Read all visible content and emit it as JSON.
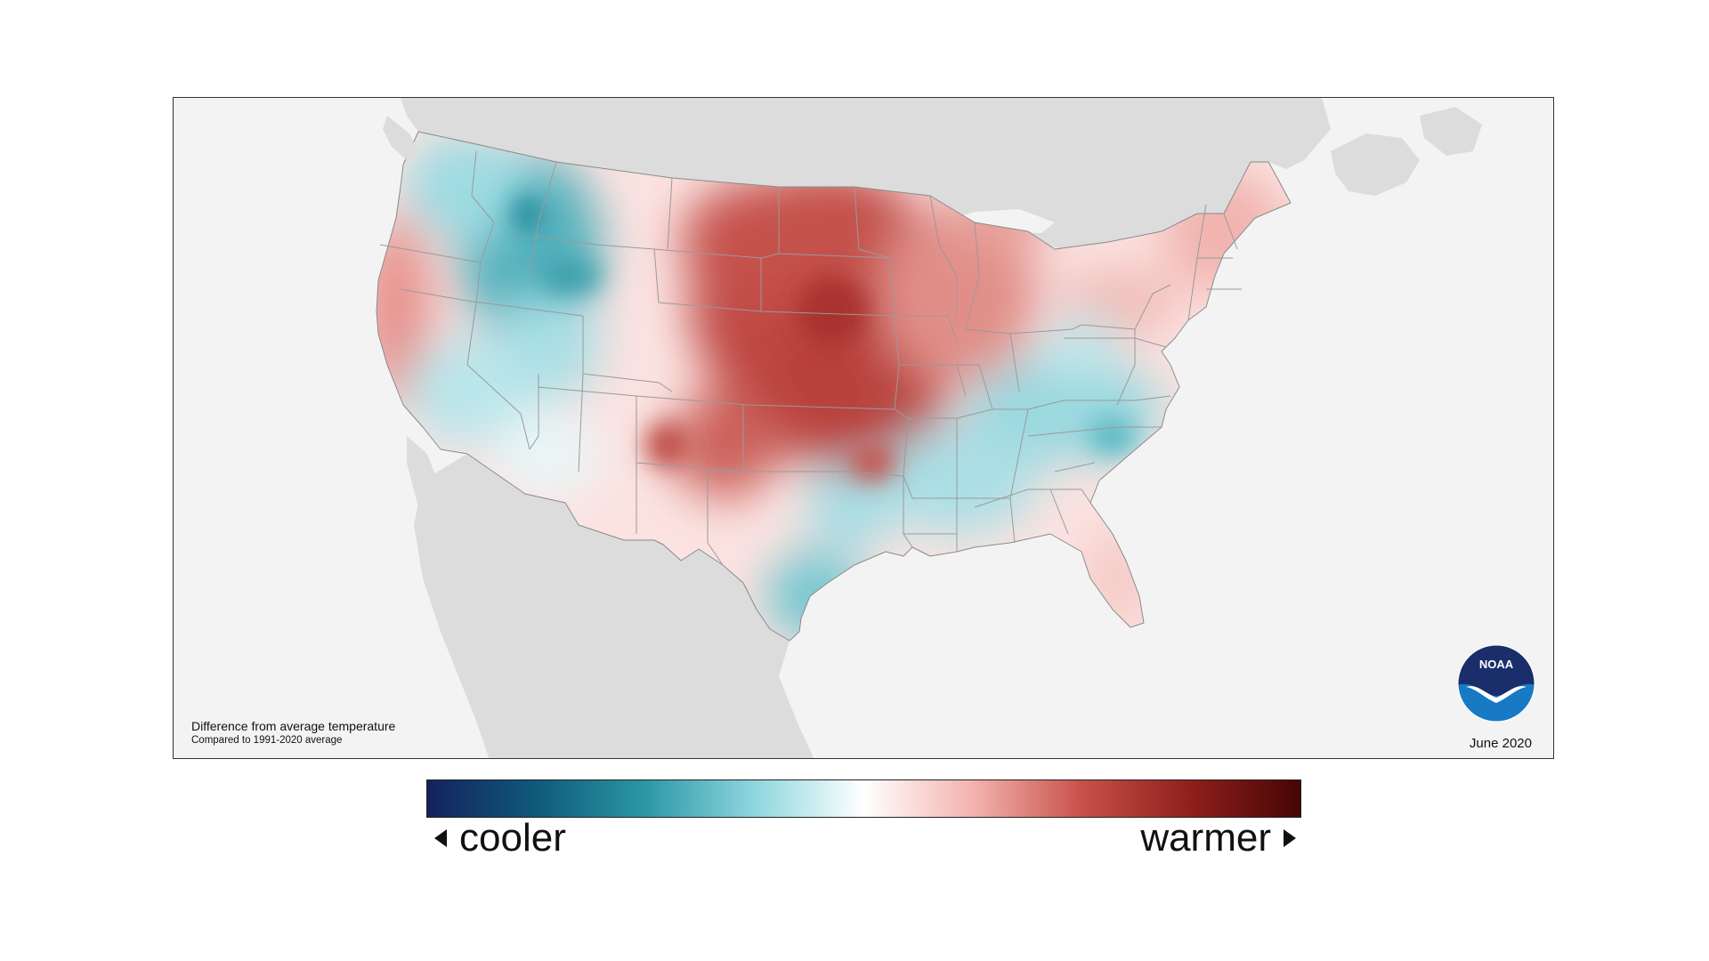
{
  "map": {
    "caption_title": "Difference from average temperature",
    "caption_subtitle": "Compared to 1991-2020 average",
    "date": "June 2020",
    "logo_text": "NOAA",
    "colors": {
      "ocean": "#f3f3f3",
      "land_other": "#dcdcdc",
      "border": "#9a9a9a",
      "neutral": "#ffffff"
    }
  },
  "legend": {
    "cooler_label": "cooler",
    "warmer_label": "warmer",
    "gradient_stops": [
      "#14225c",
      "#0f5a7a",
      "#2b98a6",
      "#8fd6de",
      "#ffffff",
      "#f3b3ad",
      "#c8504a",
      "#8e1f1b",
      "#470505"
    ]
  },
  "anomaly_regions": [
    {
      "region": "Northern Great Plains",
      "tendency": "warmer",
      "color": "#b8413c"
    },
    {
      "region": "Central Plains",
      "tendency": "warmer",
      "color": "#c04a44"
    },
    {
      "region": "Upper Midwest",
      "tendency": "warmer",
      "color": "#e49a94"
    },
    {
      "region": "California coast",
      "tendency": "warmer",
      "color": "#e38882"
    },
    {
      "region": "Northeast",
      "tendency": "warmer",
      "color": "#f0b3ae"
    },
    {
      "region": "Northern Rockies / Idaho",
      "tendency": "cooler",
      "color": "#3ea7b4"
    },
    {
      "region": "Southeast",
      "tendency": "cooler",
      "color": "#8fd6de"
    },
    {
      "region": "South Texas",
      "tendency": "cooler",
      "color": "#6cc4ce"
    },
    {
      "region": "Southwest deserts",
      "tendency": "cooler",
      "color": "#b4e5ea"
    }
  ]
}
